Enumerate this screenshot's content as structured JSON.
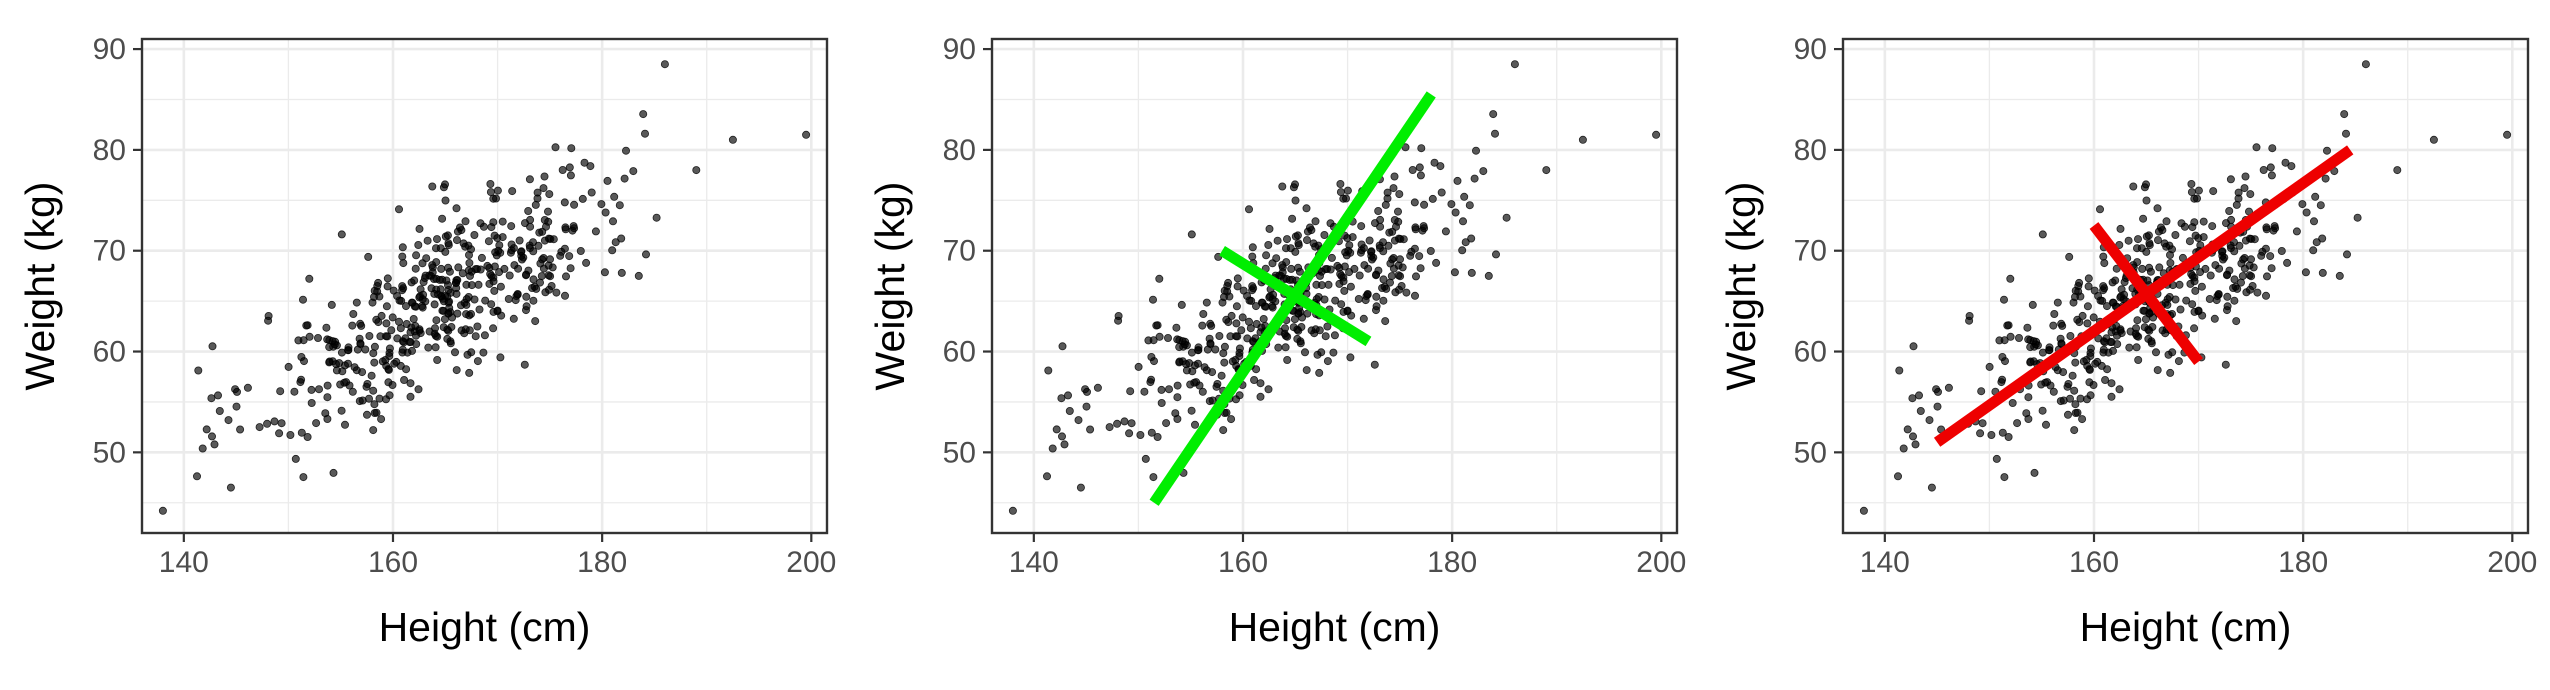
{
  "chart_data": [
    {
      "type": "scatter",
      "panel": 1,
      "xlabel": "Height (cm)",
      "ylabel": "Weight (kg)",
      "xlim": [
        136,
        201.5
      ],
      "ylim": [
        42,
        91
      ],
      "xticks": [
        140,
        160,
        180,
        200
      ],
      "yticks": [
        50,
        60,
        70,
        80,
        90
      ],
      "grid": true,
      "point_color": "#000000",
      "point_alpha": 0.65,
      "points_approx_count": 500,
      "points_shape": "elliptical cloud, positively correlated",
      "points_center": [
        165,
        65.5
      ],
      "notable_points": [
        [
          138,
          44.2
        ],
        [
          144.5,
          46.5
        ],
        [
          186,
          88.5
        ],
        [
          192.5,
          81
        ],
        [
          199.5,
          81.5
        ],
        [
          189,
          78
        ],
        [
          183.5,
          67.5
        ]
      ],
      "overlay_lines": []
    },
    {
      "type": "scatter",
      "panel": 2,
      "xlabel": "Height (cm)",
      "ylabel": "Weight (kg)",
      "xlim": [
        136,
        201.5
      ],
      "ylim": [
        42,
        91
      ],
      "xticks": [
        140,
        160,
        180,
        200
      ],
      "yticks": [
        50,
        60,
        70,
        80,
        90
      ],
      "grid": true,
      "point_color": "#000000",
      "point_alpha": 0.65,
      "overlay_lines": [
        {
          "color": "#00ee00",
          "from": [
            151.5,
            45
          ],
          "to": [
            178,
            85.5
          ]
        },
        {
          "color": "#00ee00",
          "from": [
            158,
            70
          ],
          "to": [
            172,
            61
          ]
        }
      ]
    },
    {
      "type": "scatter",
      "panel": 3,
      "xlabel": "Height (cm)",
      "ylabel": "Weight (kg)",
      "xlim": [
        136,
        201.5
      ],
      "ylim": [
        42,
        91
      ],
      "xticks": [
        140,
        160,
        180,
        200
      ],
      "yticks": [
        50,
        60,
        70,
        80,
        90
      ],
      "grid": true,
      "point_color": "#000000",
      "point_alpha": 0.65,
      "overlay_lines": [
        {
          "color": "#ee0000",
          "from": [
            145,
            51
          ],
          "to": [
            184.5,
            80
          ]
        },
        {
          "color": "#ee0000",
          "from": [
            160,
            72.5
          ],
          "to": [
            170,
            59
          ]
        }
      ]
    }
  ]
}
